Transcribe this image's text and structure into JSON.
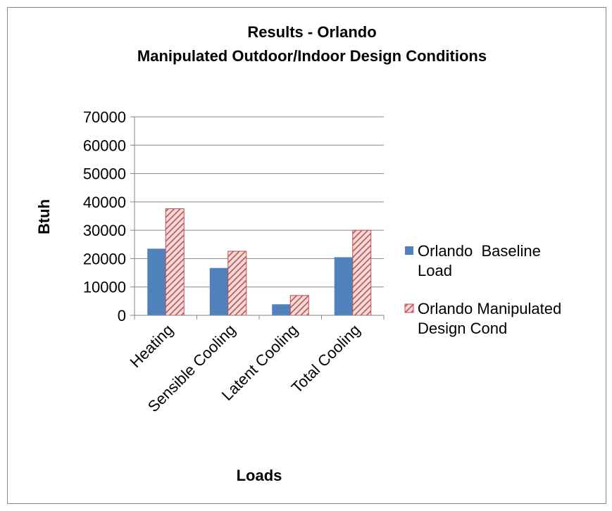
{
  "chart_data": {
    "type": "bar",
    "title_lines": [
      "Results - Orlando",
      "Manipulated Outdoor/Indoor Design Conditions"
    ],
    "xlabel": "Loads",
    "ylabel": "Btuh",
    "ylim": [
      0,
      70000
    ],
    "ytick_step": 10000,
    "yticks": [
      "70000",
      "60000",
      "50000",
      "40000",
      "30000",
      "20000",
      "10000",
      "0"
    ],
    "grid": true,
    "legend_position": "right",
    "categories": [
      "Heating",
      "Sensible Cooling",
      "Latent Cooling",
      "Total Cooling"
    ],
    "series": [
      {
        "name": "Orlando  Baseline Load",
        "legend_lines": [
          "Orlando  Baseline",
          "Load"
        ],
        "values": [
          23500,
          16700,
          3900,
          20500
        ],
        "color": "#4f81bd",
        "pattern": "solid"
      },
      {
        "name": "Orlando Manipulated Design Cond",
        "legend_lines": [
          "Orlando Manipulated",
          "Design Cond"
        ],
        "values": [
          37600,
          22600,
          7000,
          30000
        ],
        "color": "#c0504d",
        "pattern": "diagonal-hatch"
      }
    ]
  }
}
